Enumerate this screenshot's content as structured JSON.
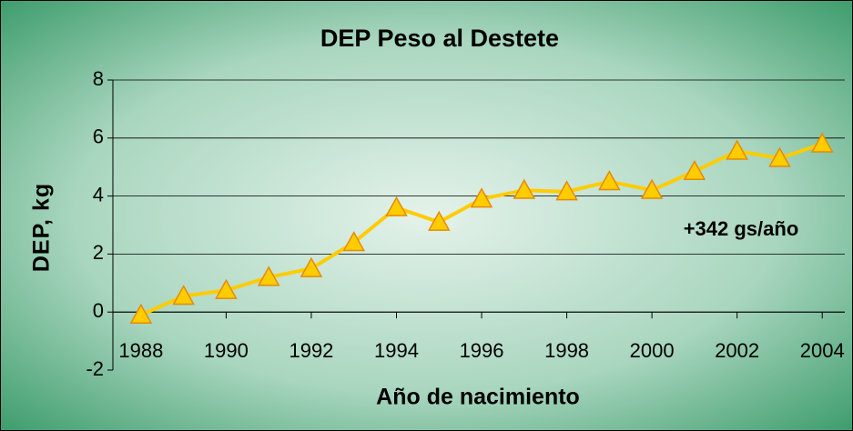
{
  "chart_data": {
    "type": "line",
    "title": "DEP Peso al Destete",
    "x_label": "Año de nacimiento",
    "y_label": "DEP, kg",
    "annotation": "+342 gs/año",
    "x": [
      1988,
      1989,
      1990,
      1991,
      1992,
      1993,
      1994,
      1995,
      1996,
      1997,
      1998,
      1999,
      2000,
      2001,
      2002,
      2003,
      2004
    ],
    "values": [
      -0.1,
      0.55,
      0.75,
      1.2,
      1.5,
      2.4,
      3.6,
      3.1,
      3.9,
      4.2,
      4.15,
      4.5,
      4.2,
      4.85,
      5.55,
      5.3,
      5.8
    ],
    "color": "#ffcc00",
    "xlim": [
      1987.34,
      2004.53
    ],
    "xticks": [
      1988,
      1990,
      1992,
      1994,
      1996,
      1998,
      2000,
      2002,
      2004
    ],
    "ylim": [
      -2,
      8
    ],
    "yticks": [
      -2,
      0,
      2,
      4,
      6,
      8
    ],
    "grid": true
  }
}
